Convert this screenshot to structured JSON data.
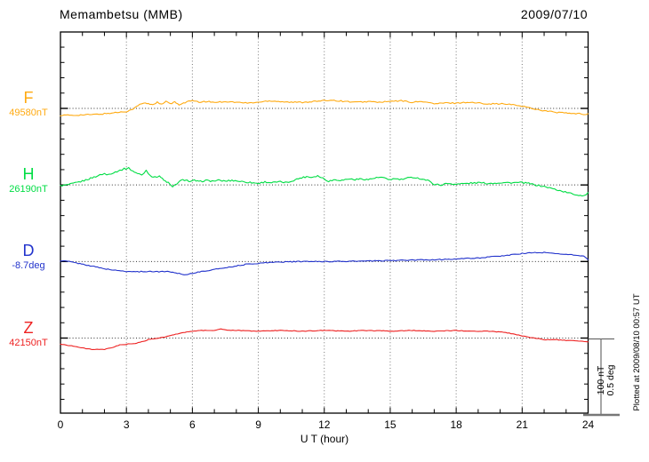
{
  "header": {
    "title": "Memambetsu (MMB)",
    "date": "2009/07/10"
  },
  "footer": {
    "plotted_at": "Plotted at 2009/08/10 00:57 UT"
  },
  "scale_bar": {
    "line1": "100 nT",
    "line2": "0.5 deg"
  },
  "chart_data": {
    "type": "line",
    "title": "Memambetsu (MMB)",
    "date": "2009/07/10",
    "xlabel": "U T (hour)",
    "x_range": [
      0,
      24
    ],
    "x_tick_labels": [
      "0",
      "3",
      "6",
      "9",
      "12",
      "15",
      "18",
      "21",
      "24"
    ],
    "grid": "dotted vertical gridlines every 3 hours; dotted horizontal baseline per channel",
    "scale": {
      "nT_per_division": 100,
      "deg_per_division": 0.5
    },
    "series": [
      {
        "id": "F",
        "label": "F",
        "base_label": "49580nT",
        "baseline_value": "49580 nT",
        "color": "#ffaa11",
        "unit": "nT",
        "jitter": 0.8,
        "points": [
          [
            0,
            -9
          ],
          [
            0.5,
            -9
          ],
          [
            1,
            -8.5
          ],
          [
            1.5,
            -8
          ],
          [
            2,
            -7
          ],
          [
            2.5,
            -5.5
          ],
          [
            3,
            -4
          ],
          [
            3.2,
            -2
          ],
          [
            3.4,
            1
          ],
          [
            3.6,
            5
          ],
          [
            3.8,
            7
          ],
          [
            4,
            6
          ],
          [
            4.2,
            5
          ],
          [
            4.4,
            8
          ],
          [
            4.6,
            5
          ],
          [
            4.8,
            9
          ],
          [
            5,
            6
          ],
          [
            5.2,
            8
          ],
          [
            5.4,
            5
          ],
          [
            5.6,
            7
          ],
          [
            5.8,
            9
          ],
          [
            6,
            10
          ],
          [
            6.3,
            8
          ],
          [
            6.6,
            9
          ],
          [
            7,
            8
          ],
          [
            7.5,
            9
          ],
          [
            8,
            8
          ],
          [
            8.5,
            7
          ],
          [
            9,
            8
          ],
          [
            9.5,
            10
          ],
          [
            10,
            9
          ],
          [
            10.5,
            8
          ],
          [
            11,
            8
          ],
          [
            11.5,
            9
          ],
          [
            12,
            10
          ],
          [
            12.3,
            11
          ],
          [
            12.6,
            10
          ],
          [
            13,
            9
          ],
          [
            13.5,
            8
          ],
          [
            14,
            9
          ],
          [
            14.5,
            8
          ],
          [
            15,
            9
          ],
          [
            15.5,
            10
          ],
          [
            16,
            8
          ],
          [
            16.5,
            9
          ],
          [
            17,
            6
          ],
          [
            17.5,
            7
          ],
          [
            18,
            7
          ],
          [
            18.5,
            8
          ],
          [
            19,
            7
          ],
          [
            19.5,
            6
          ],
          [
            20,
            6
          ],
          [
            20.5,
            5
          ],
          [
            21,
            3
          ],
          [
            21.3,
            1
          ],
          [
            21.6,
            -1
          ],
          [
            22,
            -3
          ],
          [
            22.5,
            -5
          ],
          [
            23,
            -6
          ],
          [
            23.3,
            -7
          ],
          [
            23.6,
            -7
          ],
          [
            23.8,
            -8
          ],
          [
            24,
            -7
          ]
        ]
      },
      {
        "id": "H",
        "label": "H",
        "base_label": "26190nT",
        "baseline_value": "26190 nT",
        "color": "#00dd44",
        "unit": "nT",
        "jitter": 1.0,
        "points": [
          [
            0,
            -1
          ],
          [
            0.3,
            0
          ],
          [
            0.6,
            2
          ],
          [
            1,
            5
          ],
          [
            1.3,
            8
          ],
          [
            1.6,
            11
          ],
          [
            1.8,
            13
          ],
          [
            2,
            15
          ],
          [
            2.1,
            13
          ],
          [
            2.3,
            15
          ],
          [
            2.5,
            17
          ],
          [
            2.7,
            19
          ],
          [
            2.9,
            21
          ],
          [
            3.1,
            22
          ],
          [
            3.3,
            18
          ],
          [
            3.5,
            15
          ],
          [
            3.7,
            13
          ],
          [
            3.9,
            19
          ],
          [
            4.1,
            12
          ],
          [
            4.3,
            10
          ],
          [
            4.5,
            12
          ],
          [
            4.7,
            6
          ],
          [
            4.9,
            3
          ],
          [
            5.1,
            -3
          ],
          [
            5.3,
            2
          ],
          [
            5.5,
            6
          ],
          [
            5.7,
            7
          ],
          [
            5.9,
            4
          ],
          [
            6.1,
            6
          ],
          [
            6.3,
            4
          ],
          [
            6.6,
            6
          ],
          [
            6.9,
            5
          ],
          [
            7.2,
            6
          ],
          [
            7.5,
            5
          ],
          [
            7.8,
            6
          ],
          [
            8.1,
            5
          ],
          [
            8.4,
            4
          ],
          [
            8.7,
            3
          ],
          [
            9,
            2
          ],
          [
            9.3,
            4
          ],
          [
            9.6,
            3
          ],
          [
            10,
            4
          ],
          [
            10.3,
            3
          ],
          [
            10.6,
            6
          ],
          [
            10.9,
            9
          ],
          [
            11.2,
            11
          ],
          [
            11.4,
            10
          ],
          [
            11.7,
            12
          ],
          [
            12,
            8
          ],
          [
            12.2,
            5
          ],
          [
            12.5,
            7
          ],
          [
            12.8,
            6
          ],
          [
            13.1,
            8
          ],
          [
            13.4,
            7
          ],
          [
            13.7,
            8
          ],
          [
            14,
            7
          ],
          [
            14.3,
            9
          ],
          [
            14.6,
            10
          ],
          [
            14.9,
            7
          ],
          [
            15.2,
            8
          ],
          [
            15.5,
            7
          ],
          [
            15.8,
            9
          ],
          [
            16.1,
            10
          ],
          [
            16.4,
            8
          ],
          [
            16.7,
            6
          ],
          [
            17,
            1
          ],
          [
            17.3,
            0
          ],
          [
            17.6,
            2
          ],
          [
            18,
            1
          ],
          [
            18.5,
            2
          ],
          [
            19,
            3
          ],
          [
            19.5,
            2
          ],
          [
            20,
            3
          ],
          [
            20.5,
            3
          ],
          [
            21,
            3
          ],
          [
            21.3,
            2
          ],
          [
            21.6,
            0
          ],
          [
            22,
            -2
          ],
          [
            22.4,
            -5
          ],
          [
            22.8,
            -8
          ],
          [
            23.2,
            -11
          ],
          [
            23.5,
            -13
          ],
          [
            23.8,
            -14
          ],
          [
            24,
            -10
          ]
        ]
      },
      {
        "id": "D",
        "label": "D",
        "base_label": "-8.7deg",
        "baseline_value": "-8.7 deg",
        "color": "#2233cc",
        "unit": "deg",
        "jitter": 0.003,
        "points": [
          [
            0,
            0.005
          ],
          [
            0.4,
            0
          ],
          [
            0.8,
            -0.012
          ],
          [
            1.2,
            -0.023
          ],
          [
            1.6,
            -0.035
          ],
          [
            2,
            -0.047
          ],
          [
            2.5,
            -0.058
          ],
          [
            3,
            -0.064
          ],
          [
            3.5,
            -0.067
          ],
          [
            4,
            -0.064
          ],
          [
            4.4,
            -0.067
          ],
          [
            4.8,
            -0.064
          ],
          [
            5.1,
            -0.07
          ],
          [
            5.4,
            -0.078
          ],
          [
            5.7,
            -0.087
          ],
          [
            6,
            -0.076
          ],
          [
            6.5,
            -0.064
          ],
          [
            7,
            -0.052
          ],
          [
            7.5,
            -0.04
          ],
          [
            8,
            -0.029
          ],
          [
            8.5,
            -0.017
          ],
          [
            9,
            -0.012
          ],
          [
            9.5,
            -0.006
          ],
          [
            10,
            -0.003
          ],
          [
            11,
            0
          ],
          [
            12,
            0
          ],
          [
            13,
            0.001
          ],
          [
            14,
            0.003
          ],
          [
            15,
            0.006
          ],
          [
            16,
            0.009
          ],
          [
            17,
            0.012
          ],
          [
            17.5,
            0.014
          ],
          [
            18,
            0.017
          ],
          [
            18.5,
            0.02
          ],
          [
            19,
            0.023
          ],
          [
            19.5,
            0.029
          ],
          [
            20,
            0.035
          ],
          [
            20.5,
            0.044
          ],
          [
            21,
            0.052
          ],
          [
            21.5,
            0.058
          ],
          [
            22,
            0.058
          ],
          [
            22.5,
            0.052
          ],
          [
            23,
            0.047
          ],
          [
            23.5,
            0.041
          ],
          [
            23.8,
            0.035
          ],
          [
            24,
            0.012
          ]
        ]
      },
      {
        "id": "Z",
        "label": "Z",
        "base_label": "42150nT",
        "baseline_value": "42150 nT",
        "color": "#ee2222",
        "unit": "nT",
        "jitter": 0.4,
        "points": [
          [
            0,
            -8
          ],
          [
            0.5,
            -10
          ],
          [
            1,
            -13
          ],
          [
            1.5,
            -15
          ],
          [
            2,
            -15
          ],
          [
            2.4,
            -12
          ],
          [
            2.7,
            -9
          ],
          [
            3,
            -8
          ],
          [
            3.4,
            -7
          ],
          [
            3.7,
            -5
          ],
          [
            4,
            -2
          ],
          [
            4.5,
            0
          ],
          [
            5,
            3
          ],
          [
            5.5,
            7
          ],
          [
            6,
            9
          ],
          [
            6.5,
            10
          ],
          [
            7,
            10
          ],
          [
            7.3,
            12
          ],
          [
            7.6,
            10
          ],
          [
            8,
            10
          ],
          [
            9,
            9
          ],
          [
            10,
            10
          ],
          [
            11,
            9
          ],
          [
            12,
            10
          ],
          [
            13,
            9
          ],
          [
            14,
            10
          ],
          [
            15,
            9
          ],
          [
            16,
            10
          ],
          [
            17,
            9
          ],
          [
            18,
            10
          ],
          [
            18.5,
            9
          ],
          [
            19,
            9
          ],
          [
            19.5,
            9
          ],
          [
            20,
            8
          ],
          [
            20.5,
            6
          ],
          [
            21,
            3
          ],
          [
            21.3,
            1
          ],
          [
            21.6,
            0
          ],
          [
            22,
            -2
          ],
          [
            22.5,
            -2
          ],
          [
            23,
            -3
          ],
          [
            23.5,
            -4
          ],
          [
            24,
            -5
          ]
        ]
      }
    ]
  }
}
